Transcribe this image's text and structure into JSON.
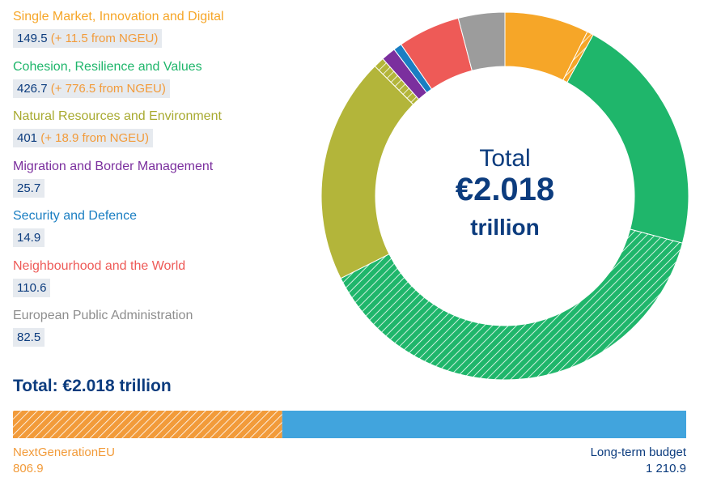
{
  "chart_data": [
    {
      "type": "pie",
      "center_text": {
        "line1": "Total",
        "line2": "€2.018",
        "line3": "trillion"
      },
      "categories": [
        {
          "label": "Single Market, Innovation and Digital",
          "value": 149.5,
          "ngeu": 11.5,
          "value_text": "149.5",
          "extra_text": "(+ 11.5 from NGEU)",
          "color": "#f6a628"
        },
        {
          "label": "Cohesion, Resilience and Values",
          "value": 426.7,
          "ngeu": 776.5,
          "value_text": "426.7",
          "extra_text": "(+ 776.5 from NGEU)",
          "color": "#1fb66b"
        },
        {
          "label": "Natural Resources and Environment",
          "value": 401,
          "ngeu": 18.9,
          "value_text": "401",
          "extra_text": "(+ 18.9 from NGEU)",
          "color": "#b3b53a"
        },
        {
          "label": "Migration and Border Management",
          "value": 25.7,
          "ngeu": 0,
          "value_text": "25.7",
          "extra_text": "",
          "color": "#7b2f9e"
        },
        {
          "label": "Security and Defence",
          "value": 14.9,
          "ngeu": 0,
          "value_text": "14.9",
          "extra_text": "",
          "color": "#1a7ec2"
        },
        {
          "label": "Neighbourhood and the World",
          "value": 110.6,
          "ngeu": 0,
          "value_text": "110.6",
          "extra_text": "",
          "color": "#ee5a57"
        },
        {
          "label": "European Public Administration",
          "value": 82.5,
          "ngeu": 0,
          "value_text": "82.5",
          "extra_text": "",
          "color": "#9c9c9c"
        }
      ]
    },
    {
      "type": "bar",
      "title": "Total: €2.018 trillion",
      "series": [
        {
          "name": "NextGenerationEU",
          "value": 806.9,
          "value_text": "806.9",
          "color": "#f29b3a"
        },
        {
          "name": "Long-term budget",
          "value": 1210.9,
          "value_text": "1 210.9",
          "color": "#41a4dd"
        }
      ]
    }
  ]
}
